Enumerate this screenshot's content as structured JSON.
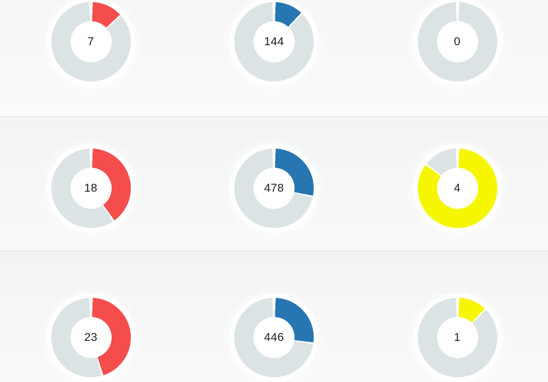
{
  "chart_data": {
    "type": "pie",
    "style": "donut-gauge-grid",
    "grid": {
      "rows": 3,
      "cols": 3
    },
    "colors": {
      "red": "#f54c4c",
      "blue": "#2776b1",
      "yellow": "#f6f600",
      "track": "#dce3e5",
      "gap": "#ffffff"
    },
    "rows": [
      {
        "gauges": [
          {
            "value": "7",
            "segment_color": "red",
            "segment_percent": 13
          },
          {
            "value": "144",
            "segment_color": "blue",
            "segment_percent": 12
          },
          {
            "value": "0",
            "segment_color": "track",
            "segment_percent": 0
          }
        ]
      },
      {
        "gauges": [
          {
            "value": "18",
            "segment_color": "red",
            "segment_percent": 40
          },
          {
            "value": "478",
            "segment_color": "blue",
            "segment_percent": 28
          },
          {
            "value": "4",
            "segment_color": "yellow",
            "segment_percent": 85
          }
        ]
      },
      {
        "gauges": [
          {
            "value": "23",
            "segment_color": "red",
            "segment_percent": 45
          },
          {
            "value": "446",
            "segment_color": "blue",
            "segment_percent": 27
          },
          {
            "value": "1",
            "segment_color": "yellow",
            "segment_percent": 12
          }
        ]
      }
    ]
  }
}
